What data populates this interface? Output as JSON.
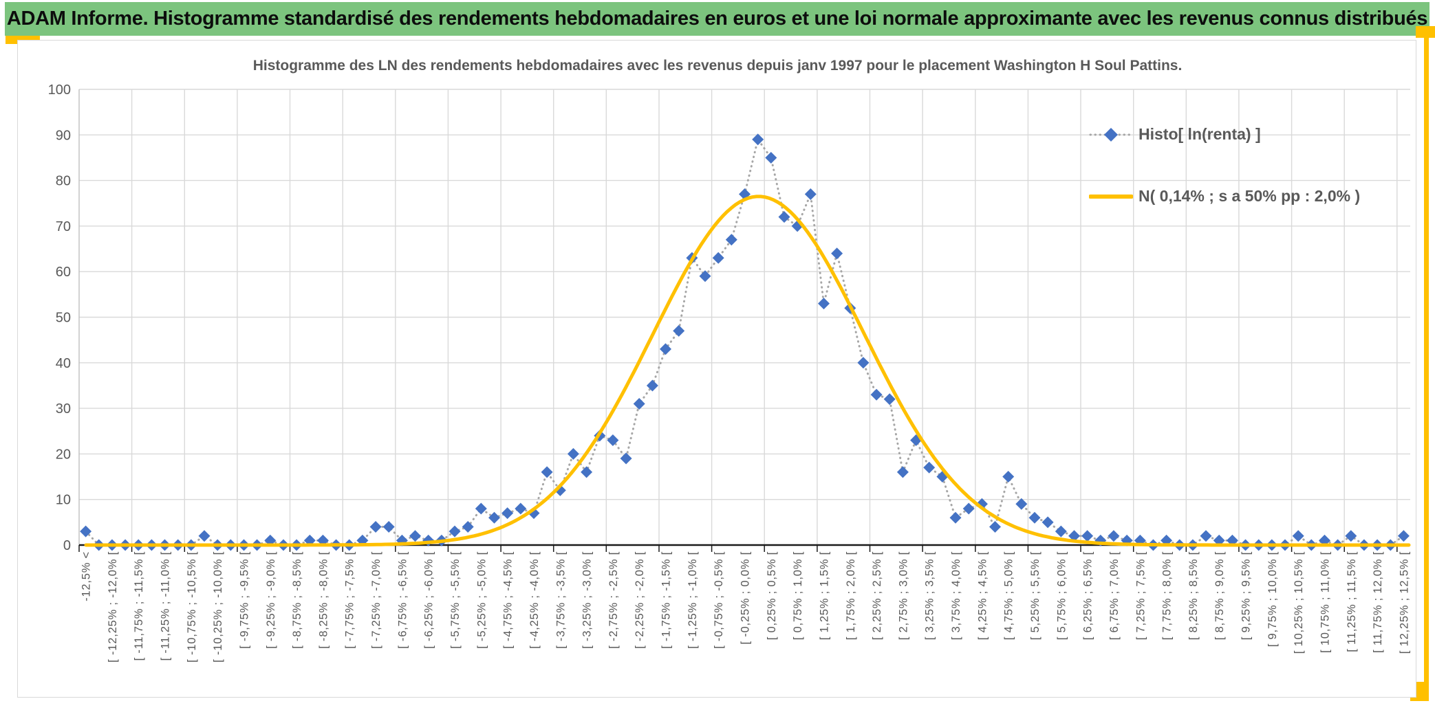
{
  "header": {
    "title": "ADAM Informe. Histogramme standardisé des rendements hebdomadaires en euros et une loi normale approximante avec les revenus connus distribués",
    "bg_color": "#7CC47E",
    "accent_color": "#FFC000"
  },
  "chart_data": {
    "type": "line",
    "subtype": "histogram-scatter-with-normal-curve",
    "title": "Histogramme des LN des rendements hebdomadaires avec les revenus depuis janv 1997 pour le placement Washington H Soul Pattins.",
    "bin_width_pct": 0.25,
    "x_range_pct": [
      -12.5,
      12.5
    ],
    "category_label_interval": 2,
    "categories_visible": [
      "-12,5% <",
      "[ -12,25% ; -12,0% [",
      "[ -11,75% ; -11,5% [",
      "[ -11,25% ; -11,0% [",
      "[ -10,75% ; -10,5% [",
      "[ -10,25% ; -10,0% [",
      "[ -9,75% ; -9,5% [",
      "[ -9,25% ; -9,0% [",
      "[ -8,75% ; -8,5% [",
      "[ -8,25% ; -8,0% [",
      "[ -7,75% ; -7,5% [",
      "[ -7,25% ; -7,0% [",
      "[ -6,75% ; -6,5% [",
      "[ -6,25% ; -6,0% [",
      "[ -5,75% ; -5,5% [",
      "[ -5,25% ; -5,0% [",
      "[ -4,75% ; -4,5% [",
      "[ -4,25% ; -4,0% [",
      "[ -3,75% ; -3,5% [",
      "[ -3,25% ; -3,0% [",
      "[ -2,75% ; -2,5% [",
      "[ -2,25% ; -2,0% [",
      "[ -1,75% ; -1,5% [",
      "[ -1,25% ; -1,0% [",
      "[ -0,75% ; -0,5% [",
      "[ -0,25% ; 0,0% [",
      "[ 0,25% ; 0,5% [",
      "[ 0,75% ; 1,0% [",
      "[ 1,25% ; 1,5% [",
      "[ 1,75% ; 2,0% [",
      "[ 2,25% ; 2,5% [",
      "[ 2,75% ; 3,0% [",
      "[ 3,25% ; 3,5% [",
      "[ 3,75% ; 4,0% [",
      "[ 4,25% ; 4,5% [",
      "[ 4,75% ; 5,0% [",
      "[ 5,25% ; 5,5% [",
      "[ 5,75% ; 6,0% [",
      "[ 6,25% ; 6,5% [",
      "[ 6,75% ; 7,0% [",
      "[ 7,25% ; 7,5% [",
      "[ 7,75% ; 8,0% [",
      "[ 8,25% ; 8,5% [",
      "[ 8,75% ; 9,0% [",
      "[ 9,25% ; 9,5% [",
      "[ 9,75% ; 10,0% [",
      "[ 10,25% ; 10,5% [",
      "[ 10,75% ; 11,0% [",
      "[ 11,25% ; 11,5% [",
      "[ 11,75% ; 12,0% [",
      "[ 12,25% ; 12,5% ["
    ],
    "series": [
      {
        "name": "Histo[ ln(renta) ]",
        "type": "scatter-dotted-line",
        "marker": "diamond",
        "color": "#4472C4",
        "line_color": "#A6A6A6",
        "values": [
          3,
          0,
          0,
          0,
          0,
          0,
          0,
          0,
          0,
          2,
          0,
          0,
          0,
          0,
          1,
          0,
          0,
          1,
          1,
          0,
          0,
          1,
          4,
          4,
          1,
          2,
          1,
          1,
          3,
          4,
          8,
          6,
          7,
          8,
          7,
          16,
          12,
          20,
          16,
          24,
          23,
          19,
          31,
          35,
          43,
          47,
          63,
          59,
          63,
          67,
          77,
          89,
          85,
          72,
          70,
          77,
          53,
          64,
          52,
          40,
          33,
          32,
          16,
          23,
          17,
          15,
          6,
          8,
          9,
          4,
          15,
          9,
          6,
          5,
          3,
          2,
          2,
          1,
          2,
          1,
          1,
          0,
          1,
          0,
          0,
          2,
          1,
          1,
          0,
          0,
          0,
          0,
          2,
          0,
          1,
          0,
          2,
          0,
          0,
          0,
          2
        ]
      },
      {
        "name": "N( 0,14% ; s a 50% pp : 2,0% )",
        "type": "curve",
        "color": "#FFC000",
        "mean_pct": 0.14,
        "sigma_pct": 2.0,
        "peak_value": 76.5
      }
    ],
    "ylim": [
      0,
      100
    ],
    "ytick_step": 10,
    "yticks": [
      0,
      10,
      20,
      30,
      40,
      50,
      60,
      70,
      80,
      90,
      100
    ],
    "grid": true,
    "legend_position": "top-right-inside",
    "colors": {
      "gridline": "#D9D9D9",
      "axis_line": "#1a1a1a",
      "tick_label": "#595959"
    }
  }
}
